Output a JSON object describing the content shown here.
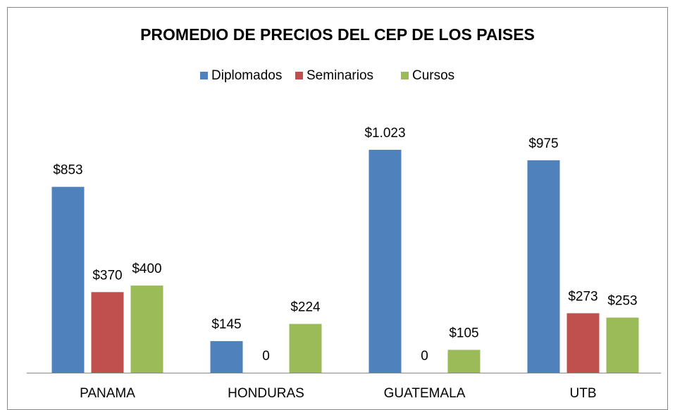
{
  "chart_data": {
    "type": "bar",
    "title": "PROMEDIO DE PRECIOS DEL CEP DE LOS PAISES",
    "categories": [
      "PANAMA",
      "HONDURAS",
      "GUATEMALA",
      "UTB"
    ],
    "series": [
      {
        "name": "Diplomados",
        "color": "#4f81bd",
        "values": [
          853,
          145,
          1023,
          975
        ],
        "value_labels": [
          "$853",
          "$145",
          "$1.023",
          "$975"
        ]
      },
      {
        "name": "Seminarios",
        "color": "#c0504d",
        "values": [
          370,
          0,
          0,
          273
        ],
        "value_labels": [
          "$370",
          "0",
          "0",
          "$273"
        ]
      },
      {
        "name": "Cursos",
        "color": "#9bbb59",
        "values": [
          400,
          224,
          105,
          253
        ],
        "value_labels": [
          "$400",
          "$224",
          "$105",
          "$253"
        ]
      }
    ],
    "legend": "top"
  }
}
